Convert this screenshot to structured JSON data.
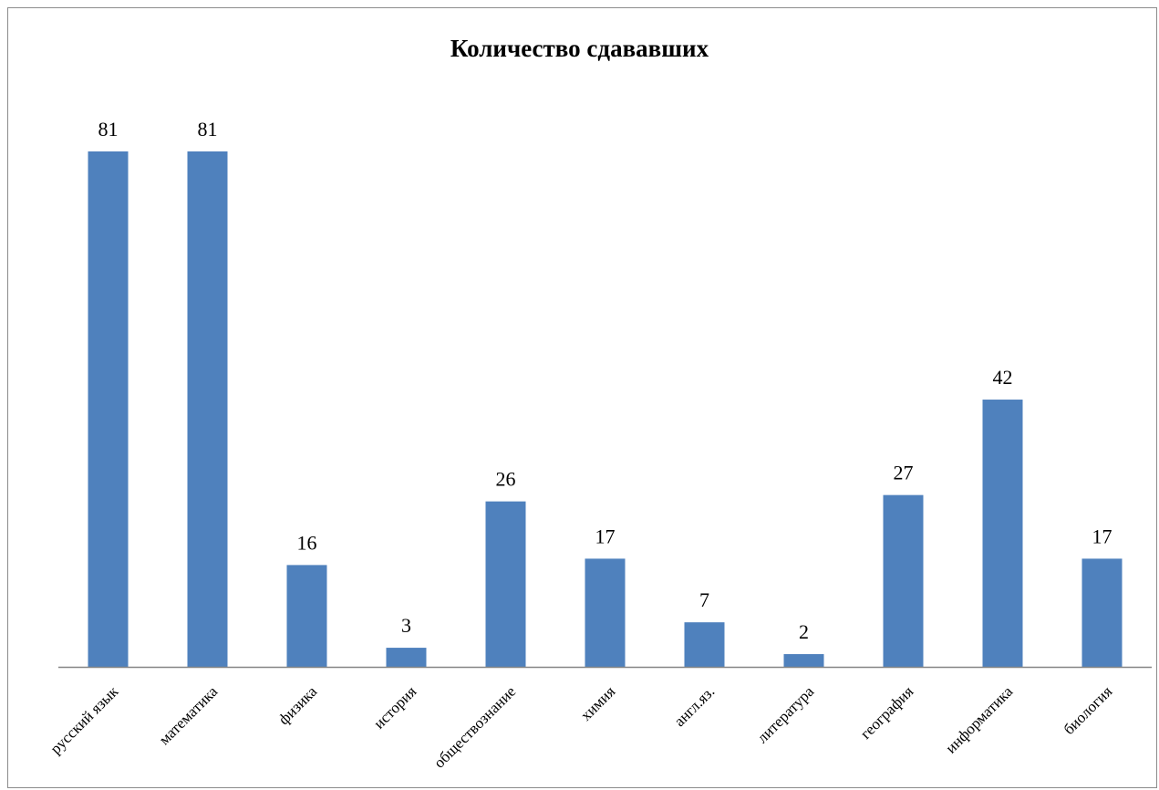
{
  "chart_data": {
    "type": "bar",
    "title": "Количество сдававших",
    "xlabel": "",
    "ylabel": "",
    "categories": [
      "русский язык",
      "математика",
      "физика",
      "история",
      "обществознание",
      "химия",
      "англ.яз.",
      "литература",
      "география",
      "информатика",
      "биология"
    ],
    "values": [
      81,
      81,
      16,
      3,
      26,
      17,
      7,
      2,
      27,
      42,
      17
    ],
    "ylim": [
      0,
      81
    ],
    "grid": false,
    "legend": "none",
    "bar_color": "#4f81bd",
    "axis_color": "#868686"
  }
}
